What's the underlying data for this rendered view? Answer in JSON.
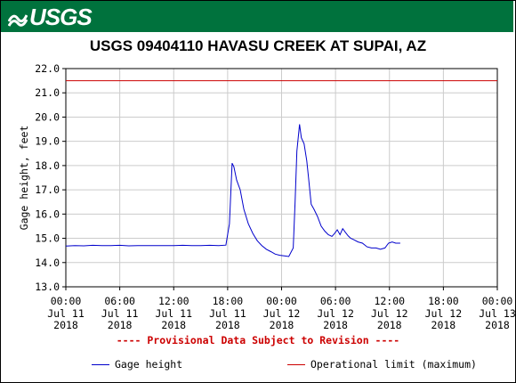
{
  "header": {
    "logo_text": "USGS",
    "banner_color": "#00723d"
  },
  "chart_data": {
    "type": "line",
    "title": "USGS 09404110 HAVASU CREEK AT SUPAI, AZ",
    "ylabel": "Gage height, feet",
    "xlabel": "",
    "ylim": [
      13.0,
      22.0
    ],
    "yticks": [
      "13.0",
      "14.0",
      "15.0",
      "16.0",
      "17.0",
      "18.0",
      "19.0",
      "20.0",
      "21.0",
      "22.0"
    ],
    "xlim_hours": [
      0,
      48
    ],
    "xticks": [
      {
        "time": "00:00",
        "date": "Jul 11",
        "year": "2018"
      },
      {
        "time": "06:00",
        "date": "Jul 11",
        "year": "2018"
      },
      {
        "time": "12:00",
        "date": "Jul 11",
        "year": "2018"
      },
      {
        "time": "18:00",
        "date": "Jul 11",
        "year": "2018"
      },
      {
        "time": "00:00",
        "date": "Jul 12",
        "year": "2018"
      },
      {
        "time": "06:00",
        "date": "Jul 12",
        "year": "2018"
      },
      {
        "time": "12:00",
        "date": "Jul 12",
        "year": "2018"
      },
      {
        "time": "18:00",
        "date": "Jul 12",
        "year": "2018"
      },
      {
        "time": "00:00",
        "date": "Jul 13",
        "year": "2018"
      }
    ],
    "series": [
      {
        "name": "Gage height",
        "color": "#0000cc",
        "x": [
          0,
          1,
          2,
          3,
          4,
          5,
          6,
          7,
          8,
          9,
          10,
          11,
          12,
          13,
          14,
          15,
          16,
          17,
          17.8,
          18.2,
          18.5,
          18.7,
          19.0,
          19.4,
          19.8,
          20.3,
          20.8,
          21.3,
          21.8,
          22.3,
          22.8,
          23.3,
          23.8,
          24.3,
          24.8,
          25.3,
          25.5,
          25.7,
          26.0,
          26.2,
          26.5,
          26.8,
          27.0,
          27.3,
          27.6,
          28.0,
          28.4,
          28.8,
          29.2,
          29.6,
          29.9,
          30.2,
          30.5,
          30.8,
          31.1,
          31.4,
          31.7,
          32.0,
          32.5,
          33.0,
          33.5,
          34.0,
          34.5,
          35.0,
          35.5,
          35.9,
          36.3,
          36.7,
          37.2
        ],
        "values": [
          14.68,
          14.7,
          14.69,
          14.71,
          14.7,
          14.7,
          14.71,
          14.69,
          14.7,
          14.7,
          14.7,
          14.7,
          14.7,
          14.71,
          14.7,
          14.7,
          14.71,
          14.7,
          14.72,
          15.6,
          18.1,
          17.95,
          17.4,
          17.0,
          16.2,
          15.6,
          15.2,
          14.9,
          14.7,
          14.55,
          14.45,
          14.35,
          14.3,
          14.28,
          14.25,
          14.6,
          16.5,
          18.6,
          19.7,
          19.15,
          18.9,
          18.2,
          17.5,
          16.4,
          16.2,
          15.9,
          15.5,
          15.3,
          15.15,
          15.08,
          15.2,
          15.35,
          15.15,
          15.4,
          15.25,
          15.1,
          15.0,
          14.95,
          14.85,
          14.8,
          14.65,
          14.6,
          14.6,
          14.55,
          14.6,
          14.8,
          14.85,
          14.8,
          14.8
        ]
      },
      {
        "name": "Operational limit (maximum)",
        "color": "#cc0000",
        "constant": 21.5
      }
    ],
    "note": "---- Provisional Data Subject to Revision ----",
    "legend": {
      "placement": "bottom",
      "items": [
        {
          "label": "Gage height",
          "color": "#0000cc"
        },
        {
          "label": "Operational limit (maximum)",
          "color": "#cc0000"
        }
      ]
    },
    "grid": true
  }
}
